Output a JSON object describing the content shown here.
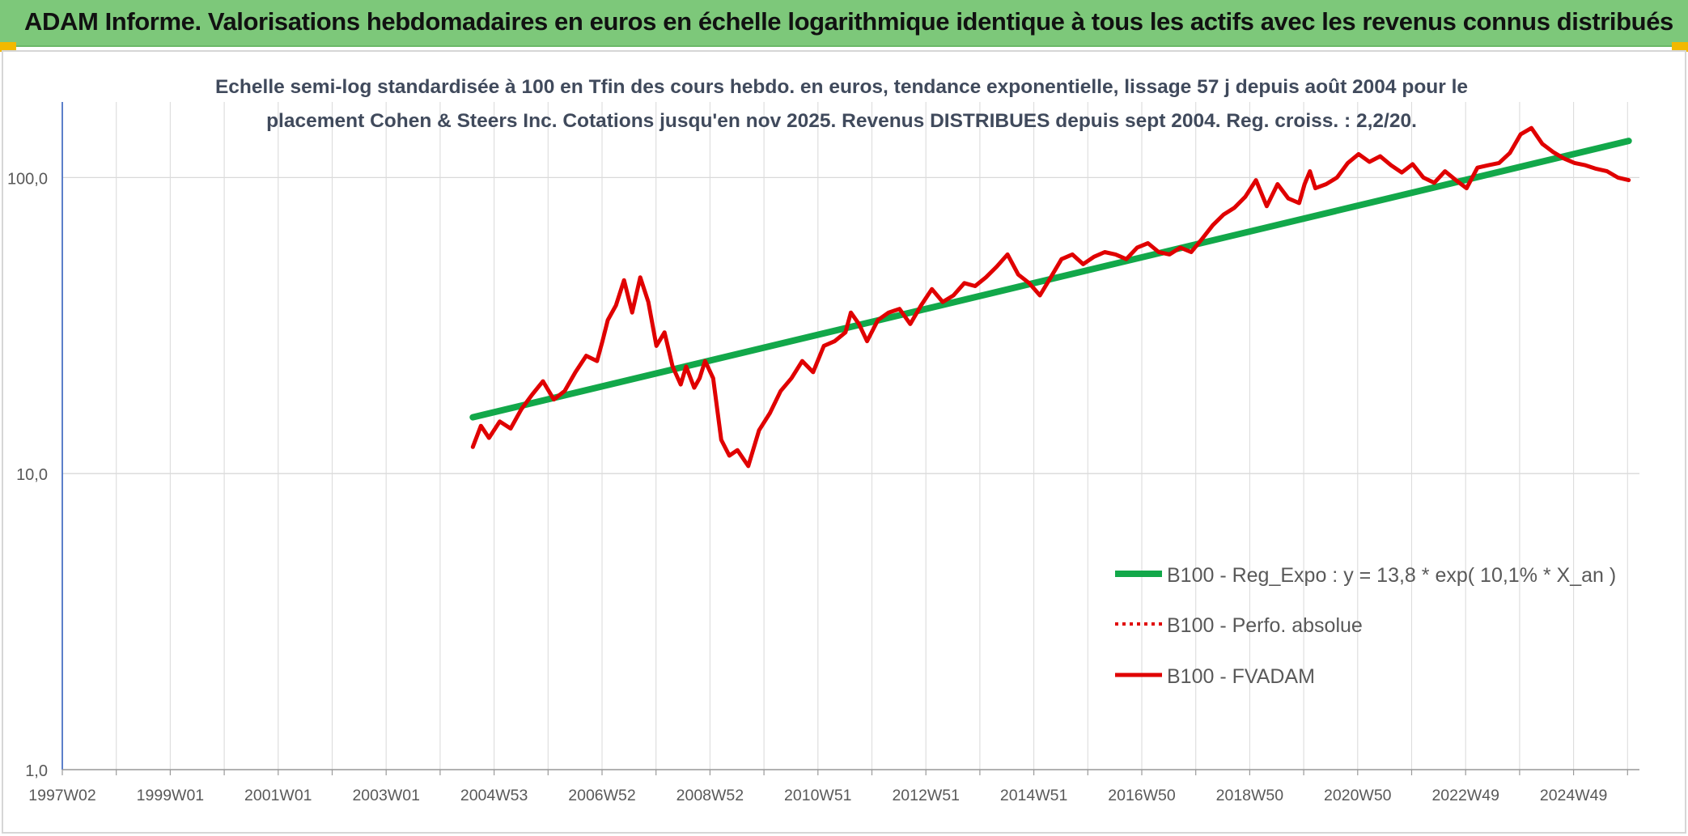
{
  "header": {
    "title": "ADAM Informe. Valorisations hebdomadaires en euros en échelle logarithmique identique à tous les actifs avec les revenus connus distribués"
  },
  "colors": {
    "banner": "#7dc87a",
    "trend": "#12a84a",
    "series": "#e00000",
    "accent": "#f2b900"
  },
  "chart_data": {
    "type": "line",
    "title_lines": [
      "Echelle semi-log standardisée à 100 en Tfin des cours hebdo. en euros, tendance exponentielle, lissage 57 j depuis août 2004 pour le",
      "placement Cohen & Steers Inc. Cotations jusqu'en nov 2025. Revenus DISTRIBUES depuis sept 2004. Reg. croiss. : 2,2/20."
    ],
    "y_scale": "log",
    "ylim": [
      1,
      180
    ],
    "y_ticks": [
      "1,0",
      "10,0",
      "100,0"
    ],
    "x_tick_labels": [
      "1997W02",
      "1999W01",
      "2001W01",
      "2003W01",
      "2004W53",
      "2006W52",
      "2008W52",
      "2010W51",
      "2012W51",
      "2014W51",
      "2016W50",
      "2018W50",
      "2020W50",
      "2022W49",
      "2024W49"
    ],
    "xlim": [
      1997.0,
      2026.2
    ],
    "grid": true,
    "legend_position": "bottom-right",
    "legend": [
      "B100 - Reg_Expo : y = 13,8 * exp( 10,1% *  X_an )",
      "B100 - Perfo. absolue",
      "B100 - FVADAM"
    ],
    "series": [
      {
        "name": "B100 - Reg_Expo : y = 13,8 * exp( 10,1% *  X_an )",
        "style": "solid-thick",
        "x": [
          2004.6,
          2026.0
        ],
        "y": [
          15.5,
          133
        ]
      },
      {
        "name": "B100 - Perfo. absolue",
        "style": "dotted",
        "x": [],
        "y": []
      },
      {
        "name": "B100 - FVADAM",
        "style": "solid",
        "x": [
          2004.6,
          2004.75,
          2004.9,
          2005.1,
          2005.3,
          2005.5,
          2005.7,
          2005.9,
          2006.1,
          2006.3,
          2006.5,
          2006.7,
          2006.9,
          2007.0,
          2007.1,
          2007.25,
          2007.4,
          2007.55,
          2007.7,
          2007.85,
          2008.0,
          2008.15,
          2008.3,
          2008.45,
          2008.55,
          2008.7,
          2008.8,
          2008.9,
          2009.05,
          2009.2,
          2009.35,
          2009.5,
          2009.7,
          2009.9,
          2010.1,
          2010.3,
          2010.5,
          2010.7,
          2010.9,
          2011.1,
          2011.3,
          2011.5,
          2011.6,
          2011.75,
          2011.9,
          2012.1,
          2012.3,
          2012.5,
          2012.7,
          2012.9,
          2013.1,
          2013.3,
          2013.5,
          2013.7,
          2013.9,
          2014.1,
          2014.3,
          2014.5,
          2014.7,
          2014.9,
          2015.1,
          2015.3,
          2015.5,
          2015.7,
          2015.9,
          2016.1,
          2016.3,
          2016.5,
          2016.7,
          2016.9,
          2017.1,
          2017.3,
          2017.5,
          2017.7,
          2017.9,
          2018.1,
          2018.3,
          2018.5,
          2018.7,
          2018.9,
          2019.1,
          2019.3,
          2019.5,
          2019.7,
          2019.9,
          2020.0,
          2020.1,
          2020.2,
          2020.4,
          2020.6,
          2020.8,
          2021.0,
          2021.2,
          2021.4,
          2021.6,
          2021.8,
          2022.0,
          2022.2,
          2022.4,
          2022.6,
          2022.8,
          2023.0,
          2023.2,
          2023.4,
          2023.6,
          2023.8,
          2024.0,
          2024.2,
          2024.4,
          2024.6,
          2024.8,
          2025.0,
          2025.2,
          2025.4,
          2025.6,
          2025.8,
          2026.0
        ],
        "y": [
          12.3,
          14.5,
          13.2,
          15,
          14.2,
          16.5,
          18.5,
          20.5,
          17.8,
          19,
          22,
          25,
          24,
          28,
          33,
          37,
          45,
          35,
          46,
          38,
          27,
          30,
          23,
          20,
          23,
          19.5,
          21,
          24,
          21,
          13,
          11.5,
          12,
          10.6,
          14,
          16,
          19,
          21,
          24,
          22,
          27,
          28,
          30,
          35,
          32,
          28,
          33,
          35,
          36,
          32,
          37,
          42,
          38,
          40,
          44,
          43,
          46,
          50,
          55,
          47,
          44,
          40,
          46,
          53,
          55,
          51,
          54,
          56,
          55,
          53,
          58,
          60,
          56,
          55,
          58,
          56,
          62,
          69,
          75,
          79,
          86,
          98,
          80,
          95,
          85,
          82,
          95,
          105,
          92,
          95,
          100,
          112,
          120,
          113,
          118,
          110,
          104,
          111,
          100,
          96,
          105,
          98,
          92,
          108,
          110,
          112,
          121,
          140,
          147,
          130,
          122,
          116,
          112,
          110,
          107,
          105,
          100,
          98
        ]
      }
    ]
  }
}
